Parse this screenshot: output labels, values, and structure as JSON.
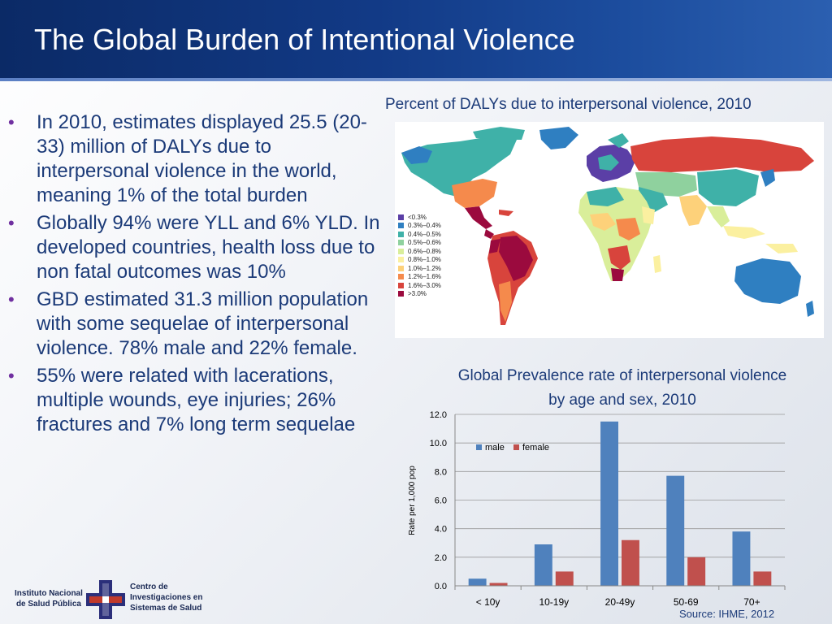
{
  "slide": {
    "title": "The Global Burden of Intentional Violence"
  },
  "bullets": [
    "In 2010, estimates displayed 25.5 (20-33) million of DALYs due to interpersonal violence in the world, meaning  1% of the total burden",
    "Globally 94% were YLL  and 6% YLD. In developed countries, health loss due to non fatal outcomes was 10%",
    "GBD estimated 31.3 million population with some sequelae of interpersonal violence. 78% male and 22% female.",
    "55% were related with lacerations, multiple wounds, eye injuries; 26% fractures and 7% long term sequelae"
  ],
  "map": {
    "title": "Percent of DALYs due to interpersonal violence, 2010",
    "legend": [
      {
        "label": "<0.3%",
        "color": "#5b3fa6"
      },
      {
        "label": "0.3%–0.4%",
        "color": "#2f7fc1"
      },
      {
        "label": "0.4%–0.5%",
        "color": "#3fb1a8"
      },
      {
        "label": "0.5%–0.6%",
        "color": "#8fd19e"
      },
      {
        "label": "0.6%–0.8%",
        "color": "#d9ee9a"
      },
      {
        "label": "0.8%–1.0%",
        "color": "#fbf0a0"
      },
      {
        "label": "1.0%–1.2%",
        "color": "#fdd17a"
      },
      {
        "label": "1.2%–1.6%",
        "color": "#f58a4c"
      },
      {
        "label": "1.6%–3.0%",
        "color": "#d8443c"
      },
      {
        "label": ">3.0%",
        "color": "#9b0a3e"
      }
    ]
  },
  "chart_title": "Global Prevalence rate of interpersonal violence by age and sex, 2010",
  "source": "Source: IHME, 2012",
  "footer": {
    "left_line1": "Instituto Nacional",
    "left_line2": "de Salud Pública",
    "right_line1": "Centro de",
    "right_line2": "Investigaciones en",
    "right_line3": "Sistemas de Salud"
  },
  "chart_data": {
    "type": "bar",
    "categories": [
      "< 10y",
      "10-19y",
      "20-49y",
      "50-69",
      "70+"
    ],
    "series": [
      {
        "name": "male",
        "values": [
          0.5,
          2.9,
          11.5,
          7.7,
          3.8
        ],
        "color": "#4f81bd"
      },
      {
        "name": "female",
        "values": [
          0.2,
          1.0,
          3.2,
          2.0,
          1.0
        ],
        "color": "#c0504d"
      }
    ],
    "ylabel": "Rate per 1,000 pop",
    "ylim": [
      0,
      12
    ],
    "yticks": [
      "0.0",
      "2.0",
      "4.0",
      "6.0",
      "8.0",
      "10.0",
      "12.0"
    ],
    "grid": true,
    "legend_position": "top-left"
  }
}
